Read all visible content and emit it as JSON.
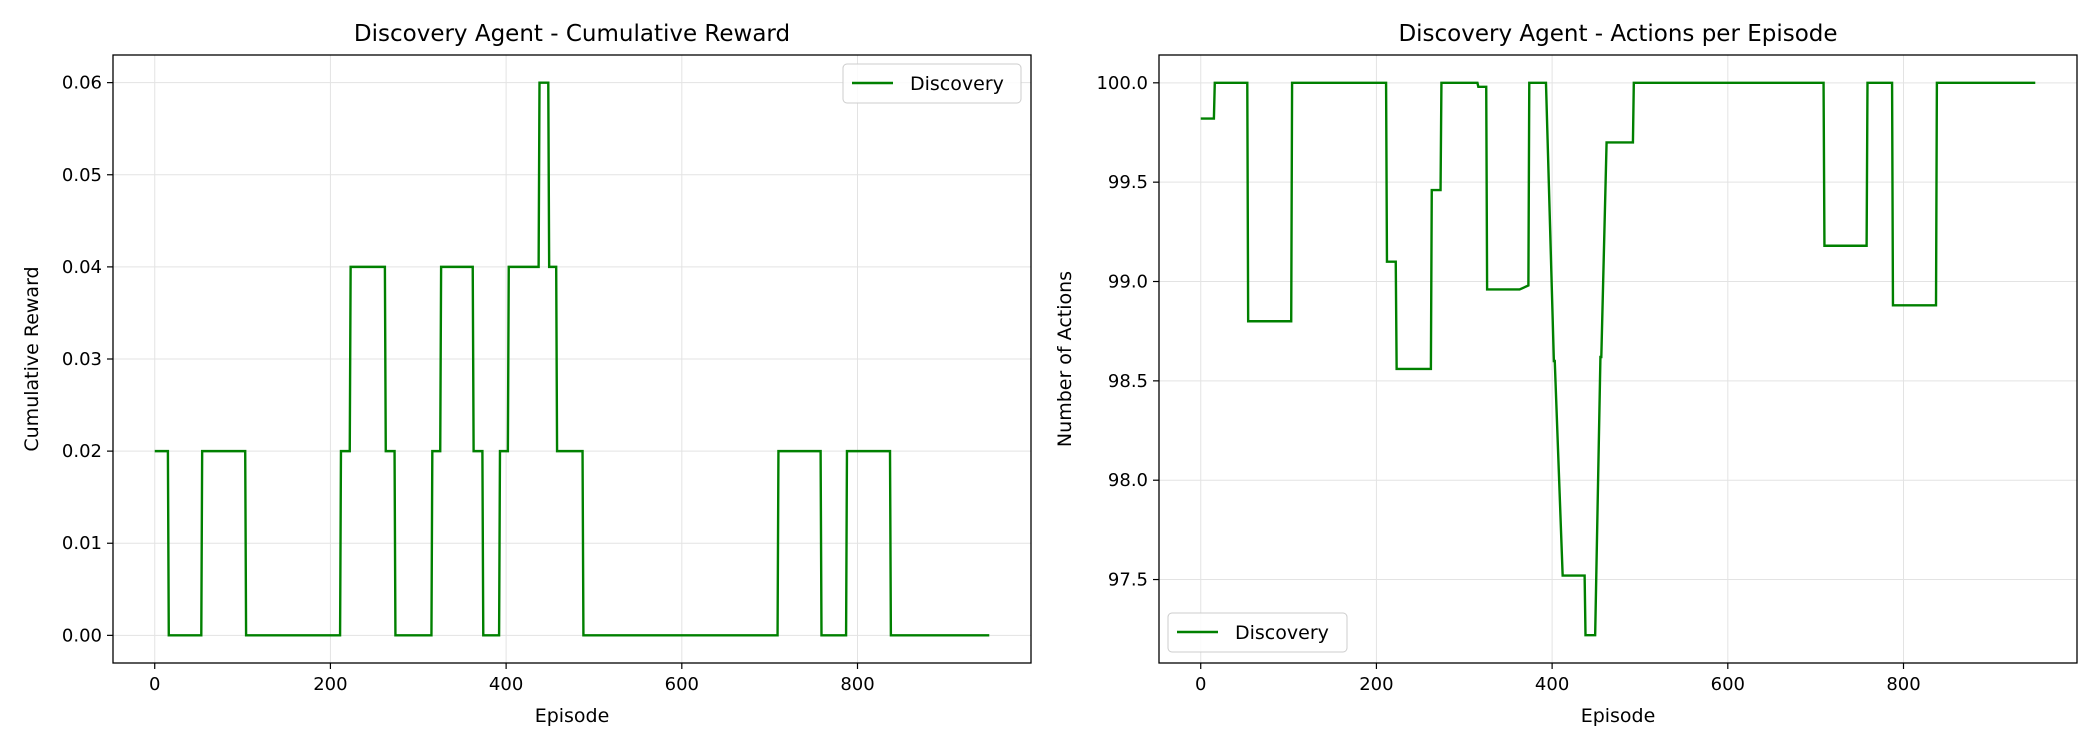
{
  "figure": {
    "background": "#ffffff"
  },
  "chart_data": [
    {
      "type": "line",
      "title": "Discovery Agent - Cumulative Reward",
      "xlabel": "Episode",
      "ylabel": "Cumulative Reward",
      "xlim": [
        -47.5,
        997.5
      ],
      "ylim": [
        -0.003,
        0.063
      ],
      "xticks": [
        0,
        200,
        400,
        600,
        800
      ],
      "yticks": [
        0.0,
        0.01,
        0.02,
        0.03,
        0.04,
        0.05,
        0.06
      ],
      "ytick_labels": [
        "0.00",
        "0.01",
        "0.02",
        "0.03",
        "0.04",
        "0.05",
        "0.06"
      ],
      "grid": true,
      "legend": {
        "position": "upper right"
      },
      "series": [
        {
          "name": "Discovery",
          "color": "#008000",
          "x": [
            0,
            15,
            16,
            53,
            54,
            103,
            104,
            211,
            212,
            222,
            223,
            262,
            263,
            273,
            274,
            315,
            316,
            325,
            326,
            362,
            363,
            373,
            374,
            392,
            393,
            402,
            403,
            437,
            438,
            448,
            449,
            457,
            458,
            487,
            488,
            709,
            710,
            758,
            759,
            787,
            788,
            837,
            838,
            950
          ],
          "y": [
            0.02,
            0.02,
            0.0,
            0.0,
            0.02,
            0.02,
            0.0,
            0.0,
            0.02,
            0.02,
            0.04,
            0.04,
            0.02,
            0.02,
            0.0,
            0.0,
            0.02,
            0.02,
            0.04,
            0.04,
            0.02,
            0.02,
            0.0,
            0.0,
            0.02,
            0.02,
            0.04,
            0.04,
            0.06,
            0.06,
            0.04,
            0.04,
            0.02,
            0.02,
            0.0,
            0.0,
            0.02,
            0.02,
            0.0,
            0.0,
            0.02,
            0.02,
            0.0,
            0.0
          ]
        }
      ]
    },
    {
      "type": "line",
      "title": "Discovery Agent - Actions per Episode",
      "xlabel": "Episode",
      "ylabel": "Number of Actions",
      "xlim": [
        -47.5,
        997.5
      ],
      "ylim": [
        97.08,
        100.14
      ],
      "xticks": [
        0,
        200,
        400,
        600,
        800
      ],
      "yticks": [
        97.5,
        98.0,
        98.5,
        99.0,
        99.5,
        100.0
      ],
      "ytick_labels": [
        "97.5",
        "98.0",
        "98.5",
        "99.0",
        "99.5",
        "100.0"
      ],
      "grid": true,
      "legend": {
        "position": "lower left"
      },
      "series": [
        {
          "name": "Discovery",
          "color": "#008000",
          "x": [
            0,
            15,
            16,
            53,
            54,
            103,
            104,
            211,
            212,
            222,
            223,
            262,
            263,
            273,
            274,
            315,
            316,
            325,
            326,
            362,
            363,
            373,
            374,
            392,
            393,
            402,
            403,
            412,
            413,
            437,
            438,
            448,
            449,
            455,
            456,
            462,
            463,
            492,
            493,
            709,
            710,
            758,
            759,
            787,
            788,
            837,
            838,
            950
          ],
          "y": [
            99.82,
            99.82,
            100.0,
            100.0,
            98.8,
            98.8,
            100.0,
            100.0,
            99.1,
            99.1,
            98.56,
            98.56,
            99.46,
            99.46,
            100.0,
            100.0,
            99.98,
            99.98,
            98.96,
            98.96,
            98.96,
            98.98,
            100.0,
            100.0,
            100.0,
            98.6,
            98.6,
            97.52,
            97.52,
            97.52,
            97.22,
            97.22,
            97.22,
            98.62,
            98.62,
            99.7,
            99.7,
            99.7,
            100.0,
            100.0,
            99.18,
            99.18,
            100.0,
            100.0,
            98.88,
            98.88,
            100.0,
            100.0
          ]
        }
      ]
    }
  ]
}
